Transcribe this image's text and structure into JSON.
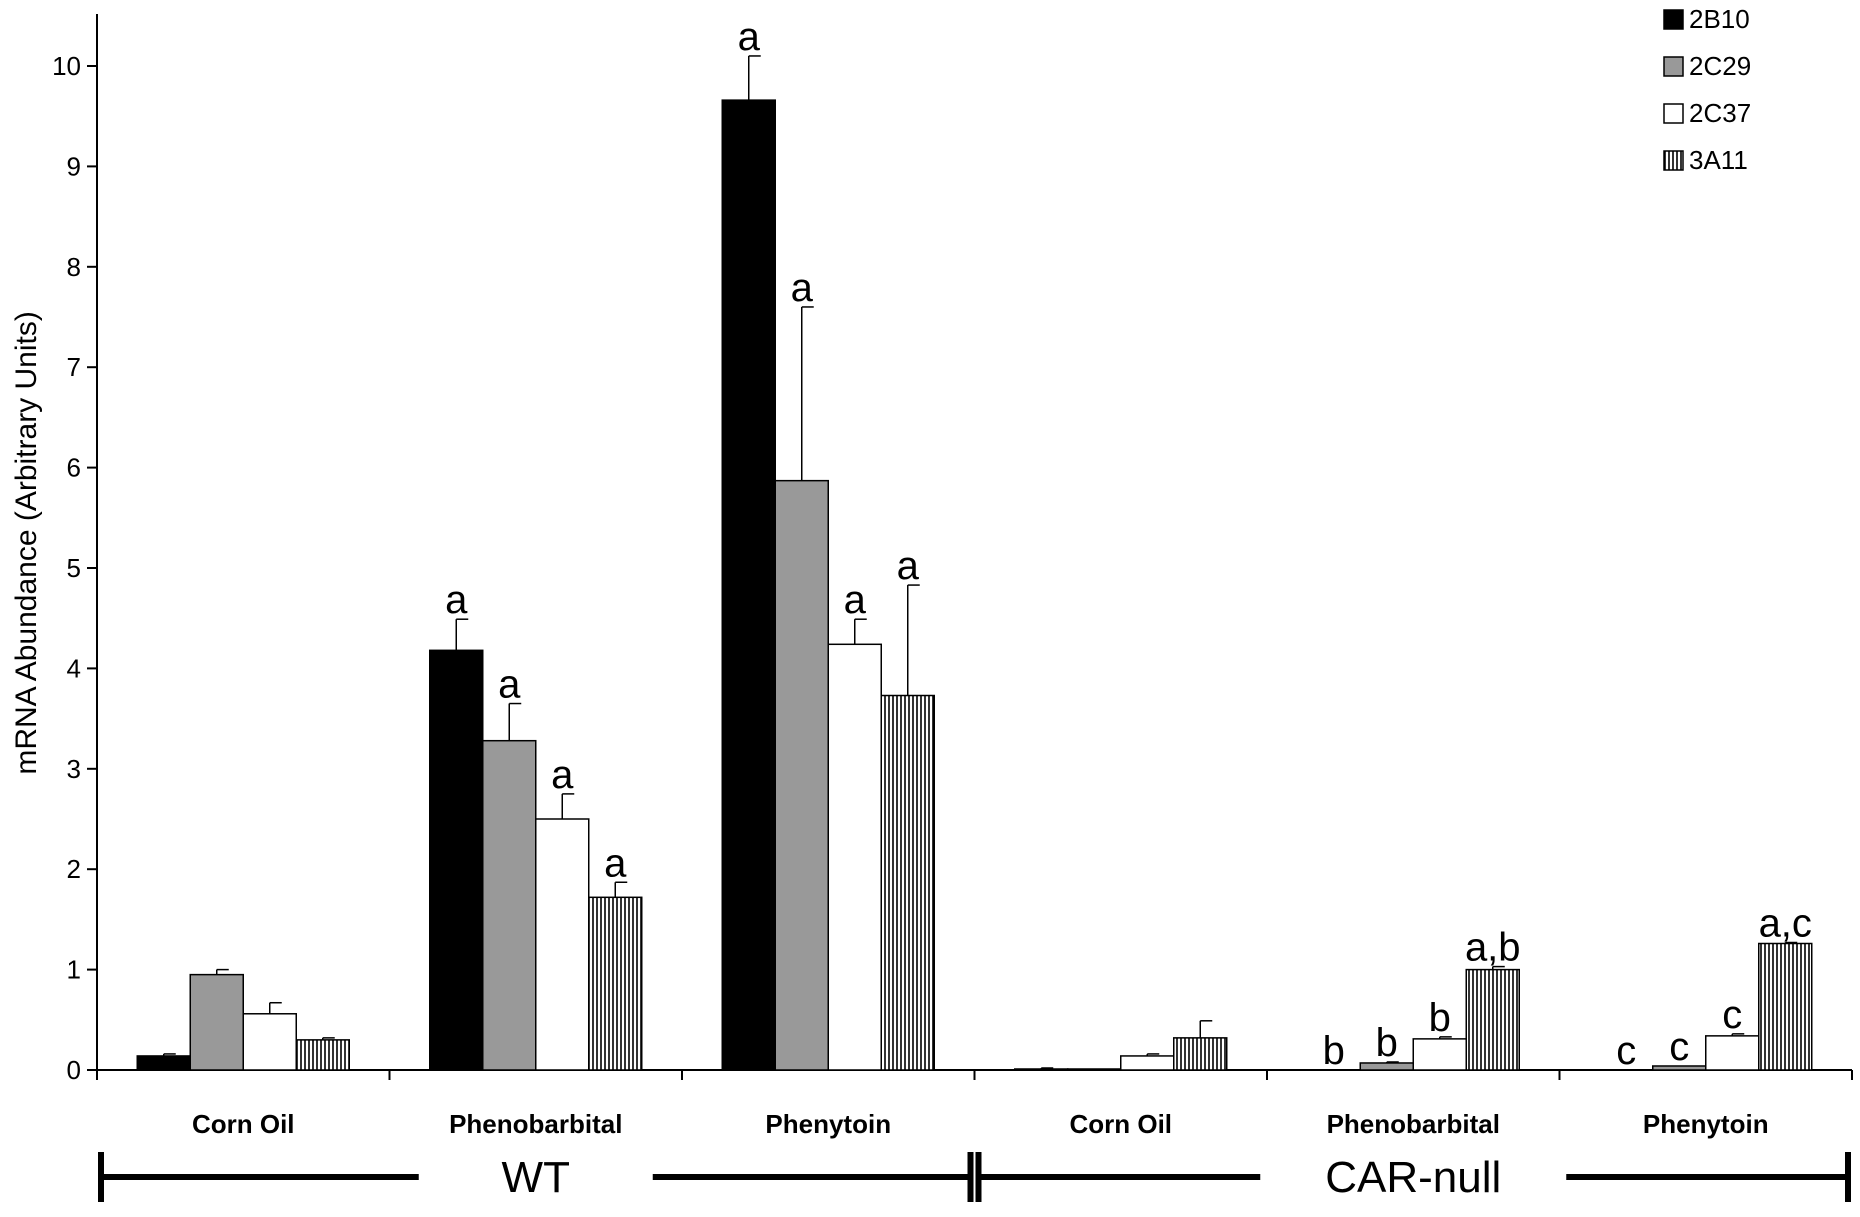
{
  "chart_data": {
    "type": "bar",
    "ylabel": "mRNA Abundance (Arbitrary Units)",
    "ylim": [
      0,
      10.5
    ],
    "yticks": [
      0,
      1,
      2,
      3,
      4,
      5,
      6,
      7,
      8,
      9,
      10
    ],
    "categories": [
      "Corn Oil",
      "Phenobarbital",
      "Phenytoin",
      "Corn Oil",
      "Phenobarbital",
      "Phenytoin"
    ],
    "groups": [
      {
        "label": "WT",
        "categories": [
          0,
          1,
          2
        ]
      },
      {
        "label": "CAR-null",
        "categories": [
          3,
          4,
          5
        ]
      }
    ],
    "legend_position": "top-right",
    "series": [
      {
        "name": "2B10",
        "fill": "#000000",
        "pattern": "solid",
        "values": [
          0.14,
          4.18,
          9.66,
          0.01,
          0.0,
          0.0
        ],
        "errors": [
          0.02,
          0.31,
          0.44,
          0.01,
          0.0,
          0.0
        ],
        "annotations": [
          "",
          "a",
          "a",
          "",
          "b",
          "c"
        ]
      },
      {
        "name": "2C29",
        "fill": "#999999",
        "pattern": "solid",
        "values": [
          0.95,
          3.28,
          5.87,
          0.01,
          0.07,
          0.04
        ],
        "errors": [
          0.05,
          0.37,
          1.73,
          0.0,
          0.01,
          0.0
        ],
        "annotations": [
          "",
          "a",
          "a",
          "",
          "b",
          "c"
        ]
      },
      {
        "name": "2C37",
        "fill": "#ffffff",
        "pattern": "solid",
        "values": [
          0.56,
          2.5,
          4.24,
          0.14,
          0.31,
          0.34
        ],
        "errors": [
          0.11,
          0.25,
          0.25,
          0.02,
          0.02,
          0.02
        ],
        "annotations": [
          "",
          "a",
          "a",
          "",
          "b",
          "c"
        ]
      },
      {
        "name": "3A11",
        "fill": "#ffffff",
        "pattern": "vertical-lines",
        "values": [
          0.3,
          1.72,
          3.73,
          0.32,
          1.0,
          1.26
        ],
        "errors": [
          0.02,
          0.15,
          1.1,
          0.17,
          0.03,
          0.01
        ],
        "annotations": [
          "",
          "a",
          "a",
          "",
          "a,b",
          "a,c"
        ]
      }
    ]
  }
}
